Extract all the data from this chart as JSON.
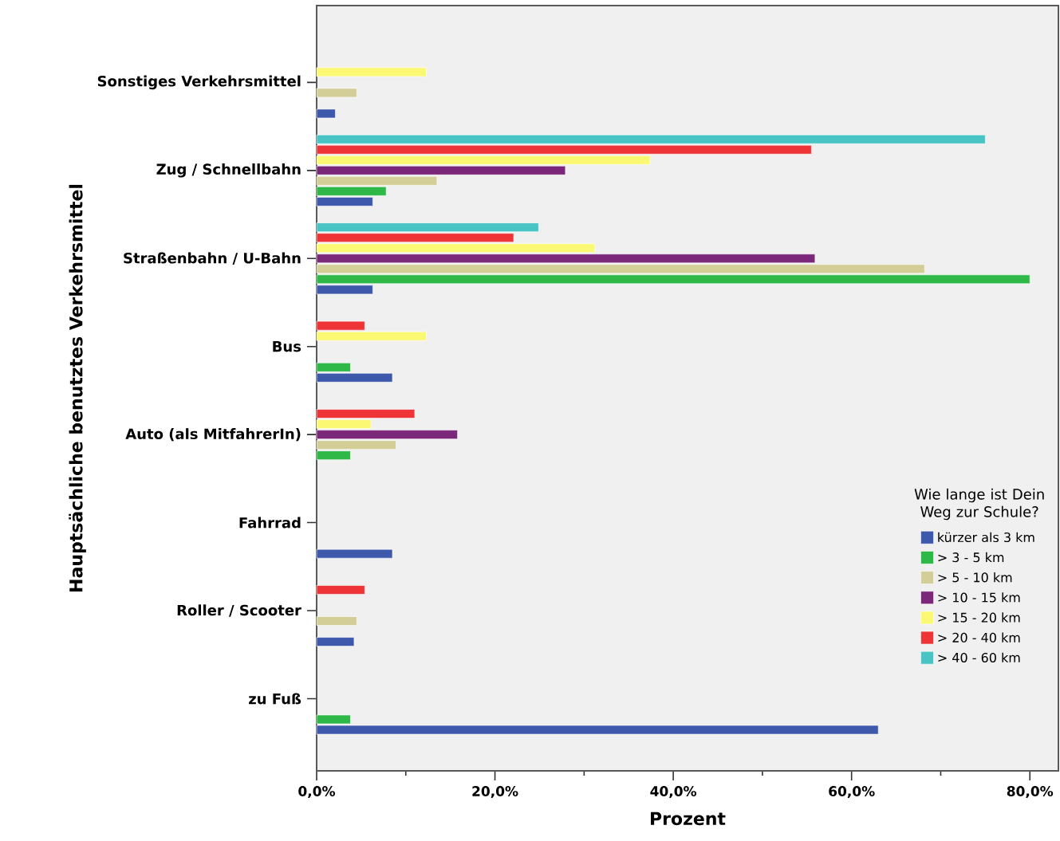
{
  "chart_data": {
    "type": "bar",
    "orientation": "horizontal",
    "xlabel": "Prozent",
    "ylabel": "Hauptsächliche benutztes Verkehrsmittel",
    "legend_title": "Wie lange ist Dein Weg zur Schule?",
    "categories": [
      "Sonstiges Verkehrsmittel",
      "Zug / Schnellbahn",
      "Straßenbahn / U-Bahn",
      "Bus",
      "Auto (als MitfahrerIn)",
      "Fahrrad",
      "Roller / Scooter",
      "zu Fuß"
    ],
    "series": [
      {
        "name": "kürzer als 3 km",
        "color": "#3e58ac",
        "values": [
          2.1,
          6.3,
          6.3,
          8.5,
          null,
          8.5,
          4.2,
          63.0
        ]
      },
      {
        "name": "> 3 - 5 km",
        "color": "#2eb848",
        "values": [
          null,
          7.8,
          80.0,
          3.8,
          3.8,
          null,
          null,
          3.8
        ]
      },
      {
        "name": "> 5 - 10 km",
        "color": "#d3ce97",
        "values": [
          4.5,
          13.5,
          68.2,
          null,
          8.9,
          null,
          4.5,
          null
        ]
      },
      {
        "name": "> 10 - 15 km",
        "color": "#7b287b",
        "values": [
          null,
          27.9,
          55.9,
          null,
          15.8,
          null,
          null,
          null
        ]
      },
      {
        "name": "> 15 - 20 km",
        "color": "#fbf873",
        "values": [
          12.3,
          37.4,
          31.2,
          12.3,
          6.1,
          null,
          null,
          null
        ]
      },
      {
        "name": "> 20 - 40 km",
        "color": "#ef3438",
        "values": [
          null,
          55.5,
          22.1,
          5.4,
          11.0,
          null,
          5.4,
          null
        ]
      },
      {
        "name": "> 40 - 60 km",
        "color": "#48c4c4",
        "values": [
          null,
          75.0,
          24.9,
          null,
          null,
          null,
          null,
          null
        ]
      }
    ],
    "xlim": [
      0,
      83.2
    ],
    "xticks": [
      {
        "value": 0,
        "label": "0,0%"
      },
      {
        "value": 10,
        "label": null
      },
      {
        "value": 20,
        "label": "20,0%"
      },
      {
        "value": 30,
        "label": null
      },
      {
        "value": 40,
        "label": "40,0%"
      },
      {
        "value": 50,
        "label": null
      },
      {
        "value": 60,
        "label": "60,0%"
      },
      {
        "value": 70,
        "label": null
      },
      {
        "value": 80,
        "label": "80,0%"
      }
    ],
    "grid": false,
    "legend": "bottom right"
  }
}
